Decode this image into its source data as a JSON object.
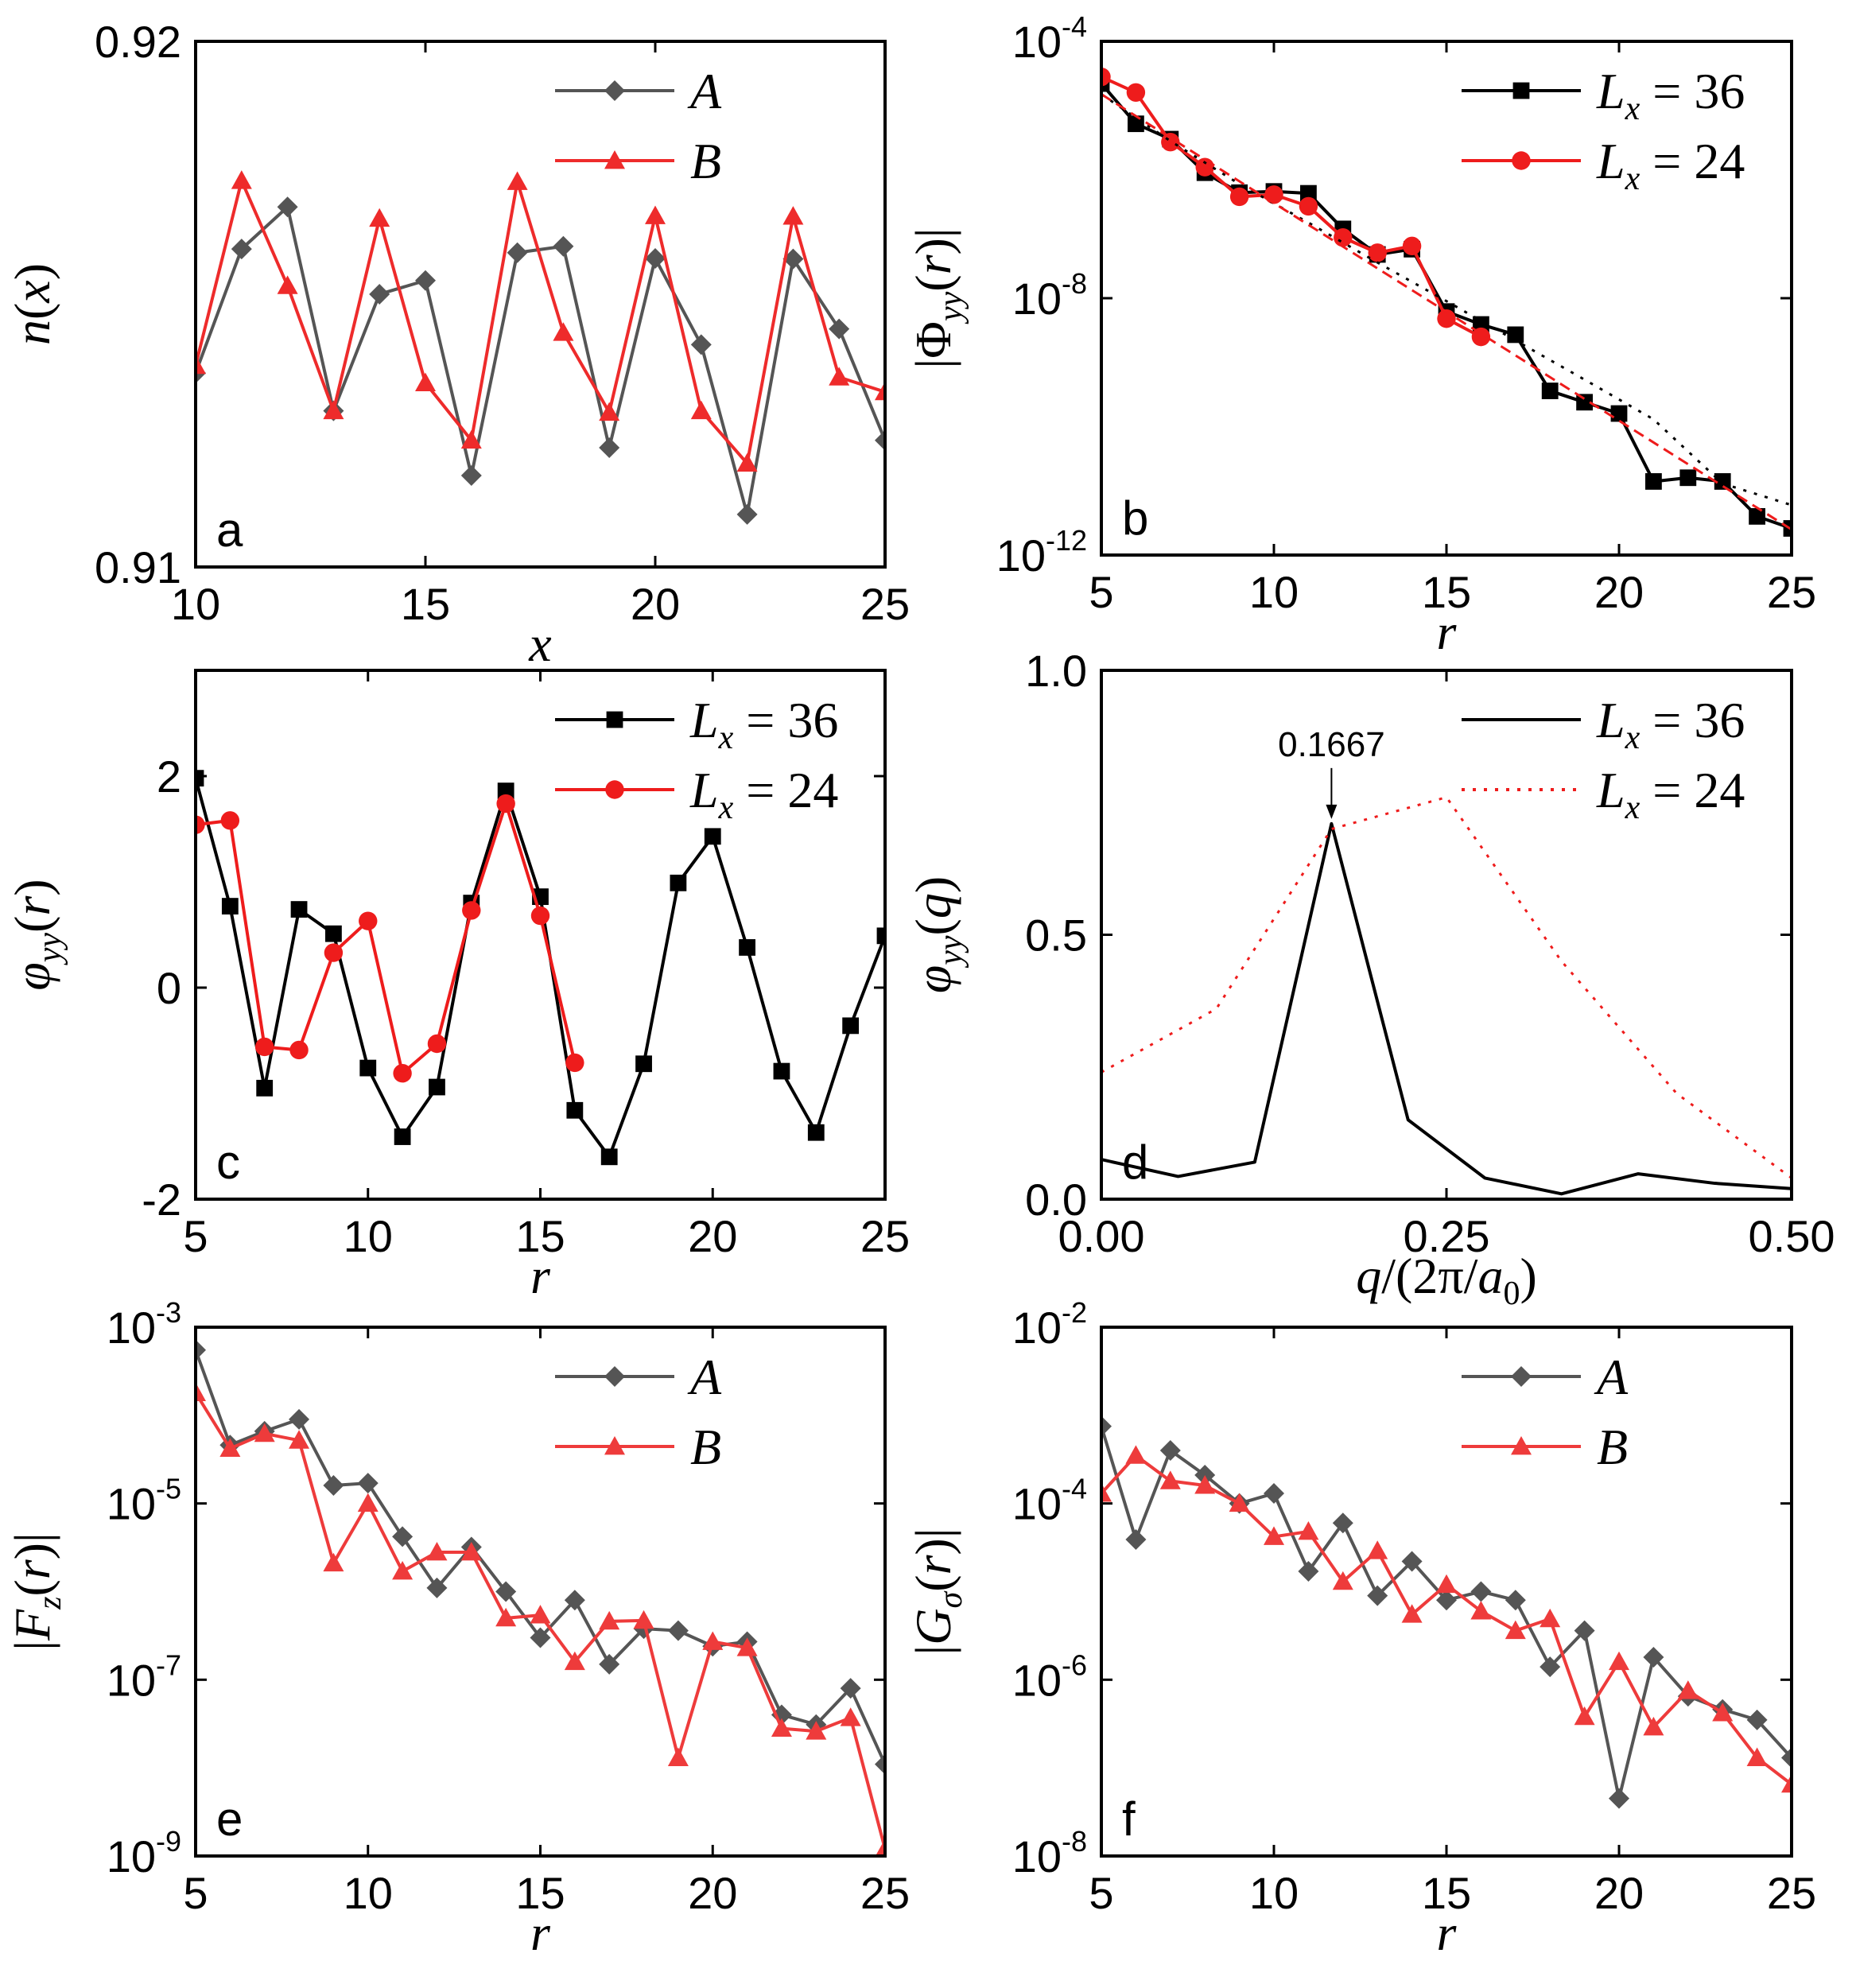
{
  "chart_data": [
    {
      "id": "a",
      "type": "line",
      "panel_label": "a",
      "xlabel": "x",
      "ylabel": "n(x)",
      "xlim": [
        10,
        25
      ],
      "ylim": [
        0.91,
        0.92
      ],
      "yscale": "linear",
      "xticks": [
        10,
        15,
        20,
        25
      ],
      "xtick_labels": [
        "10",
        "15",
        "20",
        "25"
      ],
      "yticks": [
        0.91,
        0.92
      ],
      "ytick_labels": [
        "0.91",
        "0.92"
      ],
      "legend_position": "top-right",
      "series": [
        {
          "name": "A",
          "color": "#555555",
          "marker": "diamond",
          "x": [
            10,
            11,
            12,
            13,
            14,
            15,
            16,
            17,
            18,
            19,
            20,
            21,
            22,
            23,
            24,
            25
          ],
          "y": [
            0.91369,
            0.91605,
            0.91685,
            0.91297,
            0.91519,
            0.91545,
            0.91174,
            0.91598,
            0.9161,
            0.91227,
            0.91587,
            0.91423,
            0.911,
            0.91586,
            0.91453,
            0.91241
          ]
        },
        {
          "name": "B",
          "color": "#ee2b2b",
          "marker": "triangle",
          "x": [
            10,
            11,
            12,
            13,
            14,
            15,
            16,
            17,
            18,
            19,
            20,
            21,
            22,
            23,
            24,
            25
          ],
          "y": [
            0.91383,
            0.91735,
            0.91535,
            0.91297,
            0.91663,
            0.9135,
            0.91241,
            0.91733,
            0.91446,
            0.91294,
            0.91668,
            0.91297,
            0.91197,
            0.91667,
            0.91361,
            0.91333
          ]
        }
      ]
    },
    {
      "id": "b",
      "type": "line",
      "panel_label": "b",
      "xlabel": "r",
      "ylabel": "|Φyy(r)|",
      "xlim": [
        5,
        25
      ],
      "ylim": [
        1e-12,
        0.0001
      ],
      "yscale": "log",
      "xticks": [
        5,
        10,
        15,
        20,
        25
      ],
      "xtick_labels": [
        "5",
        "10",
        "15",
        "20",
        "25"
      ],
      "yticks": [
        1e-12,
        1e-08,
        0.0001
      ],
      "ytick_labels": [
        [
          "10",
          "-12"
        ],
        [
          "10",
          "-8"
        ],
        [
          "10",
          "-4"
        ]
      ],
      "legend_position": "top-right",
      "series": [
        {
          "name": "Lx = 36",
          "legend_lhs": "L",
          "legend_sub": "x",
          "legend_rhs": " = 36",
          "color": "#000000",
          "marker": "square",
          "x": [
            5,
            6,
            7,
            8,
            9,
            10,
            11,
            12,
            13,
            14,
            15,
            16,
            17,
            18,
            19,
            20,
            21,
            22,
            23,
            24,
            25
          ],
          "y": [
            2.2e-05,
            5.2e-06,
            3e-06,
            9e-07,
            4.4e-07,
            4.6e-07,
            4.3e-07,
            1.2e-07,
            4.8e-08,
            5.8e-08,
            6.2e-09,
            3.9e-09,
            2.7e-09,
            3.6e-10,
            2.4e-10,
            1.6e-10,
            1.4e-11,
            1.6e-11,
            1.4e-11,
            4e-12,
            2.6e-12
          ]
        },
        {
          "name": "Lx = 24",
          "legend_lhs": "L",
          "legend_sub": "x",
          "legend_rhs": " = 24",
          "color": "#ee1c1c",
          "marker": "circle",
          "x": [
            5,
            6,
            7,
            8,
            9,
            10,
            11,
            12,
            13,
            14,
            15,
            16
          ],
          "y": [
            2.8e-05,
            1.6e-05,
            2.7e-06,
            1.1e-06,
            3.8e-07,
            4.1e-07,
            2.7e-07,
            8.8e-08,
            5.1e-08,
            6.5e-08,
            4.8e-09,
            2.5e-09
          ]
        },
        {
          "name": "fit 36",
          "color": "#000000",
          "style": "dotted",
          "in_legend": false,
          "x": [
            5,
            7,
            9,
            11,
            13,
            15,
            17,
            19,
            21,
            23,
            25
          ],
          "y": [
            1.5e-05,
            2.8e-06,
            6e-07,
            1.5e-07,
            3.6e-08,
            9e-09,
            2.2e-09,
            5.4e-10,
            1.3e-10,
            1.3e-11,
            6e-12
          ]
        },
        {
          "name": "fit 24",
          "color": "#ee1c1c",
          "style": "dashed",
          "in_legend": false,
          "x": [
            5,
            25
          ],
          "y": [
            1.5e-05,
            2.5e-12
          ]
        }
      ]
    },
    {
      "id": "c",
      "type": "line",
      "panel_label": "c",
      "xlabel": "r",
      "ylabel": "φyy(r)",
      "xlim": [
        5,
        25
      ],
      "ylim": [
        -2,
        3
      ],
      "yscale": "linear",
      "xticks": [
        5,
        10,
        15,
        20,
        25
      ],
      "xtick_labels": [
        "5",
        "10",
        "15",
        "20",
        "25"
      ],
      "yticks": [
        -2,
        0,
        2
      ],
      "ytick_labels": [
        "-2",
        "0",
        "2"
      ],
      "legend_position": "top-right",
      "series": [
        {
          "name": "Lx = 36",
          "legend_lhs": "L",
          "legend_sub": "x",
          "legend_rhs": " = 36",
          "color": "#000000",
          "marker": "square",
          "x": [
            5,
            6,
            7,
            8,
            9,
            10,
            11,
            12,
            13,
            14,
            15,
            16,
            17,
            18,
            19,
            20,
            21,
            22,
            23,
            24,
            25
          ],
          "y": [
            1.98,
            0.77,
            -0.95,
            0.74,
            0.51,
            -0.76,
            -1.41,
            -0.94,
            0.8,
            1.86,
            0.86,
            -1.16,
            -1.6,
            -0.72,
            0.99,
            1.43,
            0.38,
            -0.79,
            -1.37,
            -0.36,
            0.49
          ]
        },
        {
          "name": "Lx = 24",
          "legend_lhs": "L",
          "legend_sub": "x",
          "legend_rhs": " = 24",
          "color": "#ee1c1c",
          "marker": "circle",
          "x": [
            5,
            6,
            7,
            8,
            9,
            10,
            11,
            12,
            13,
            14,
            15,
            16
          ],
          "y": [
            1.54,
            1.58,
            -0.56,
            -0.59,
            0.33,
            0.63,
            -0.81,
            -0.53,
            0.73,
            1.74,
            0.68,
            -0.71
          ]
        }
      ]
    },
    {
      "id": "d",
      "type": "line",
      "panel_label": "d",
      "xlabel": "q/(2π/a0)",
      "ylabel": "φyy(q)",
      "xlim": [
        0,
        0.5
      ],
      "ylim": [
        0,
        1.0
      ],
      "yscale": "linear",
      "xticks": [
        0,
        0.25,
        0.5
      ],
      "xtick_labels": [
        "0.00",
        "0.25",
        "0.50"
      ],
      "yticks": [
        0,
        0.5,
        1.0
      ],
      "ytick_labels": [
        "0.0",
        "0.5",
        "1.0"
      ],
      "legend_position": "top-right",
      "annotation": {
        "text": "0.1667",
        "x": 0.1667,
        "y": 0.71
      },
      "series": [
        {
          "name": "Lx = 36",
          "legend_lhs": "L",
          "legend_sub": "x",
          "legend_rhs": " = 36",
          "color": "#000000",
          "style": "solid",
          "x": [
            0,
            0.0556,
            0.1111,
            0.1667,
            0.2222,
            0.2778,
            0.3333,
            0.3889,
            0.4444,
            0.5
          ],
          "y": [
            0.075,
            0.043,
            0.07,
            0.71,
            0.15,
            0.04,
            0.01,
            0.048,
            0.03,
            0.02
          ]
        },
        {
          "name": "Lx = 24",
          "legend_lhs": "L",
          "legend_sub": "x",
          "legend_rhs": " = 24",
          "color": "#ee1c1c",
          "style": "dotted",
          "x": [
            0,
            0.0833,
            0.1667,
            0.25,
            0.3333,
            0.4167,
            0.5
          ],
          "y": [
            0.24,
            0.36,
            0.7,
            0.76,
            0.45,
            0.2,
            0.04
          ]
        }
      ]
    },
    {
      "id": "e",
      "type": "line",
      "panel_label": "e",
      "xlabel": "r",
      "ylabel": "|Fz(r)|",
      "xlim": [
        5,
        25
      ],
      "ylim": [
        1e-09,
        0.001
      ],
      "yscale": "log",
      "xticks": [
        5,
        10,
        15,
        20,
        25
      ],
      "xtick_labels": [
        "5",
        "10",
        "15",
        "20",
        "25"
      ],
      "yticks": [
        1e-09,
        1e-07,
        1e-05,
        0.001
      ],
      "ytick_labels": [
        [
          "10",
          "-9"
        ],
        [
          "10",
          "-7"
        ],
        [
          "10",
          "-5"
        ],
        [
          "10",
          "-3"
        ]
      ],
      "legend_position": "top-right",
      "series": [
        {
          "name": "A",
          "color": "#555555",
          "marker": "diamond",
          "x": [
            5,
            6,
            7,
            8,
            9,
            10,
            11,
            12,
            13,
            14,
            15,
            16,
            17,
            18,
            19,
            20,
            21,
            22,
            23,
            24,
            25
          ],
          "y": [
            0.00055,
            4.6e-05,
            6.6e-05,
            9e-05,
            1.6e-05,
            1.7e-05,
            4.2e-06,
            1.1e-06,
            3.2e-06,
            1e-06,
            3e-07,
            8e-07,
            1.5e-07,
            3.8e-07,
            3.6e-07,
            2.4e-07,
            2.7e-07,
            4e-08,
            3.1e-08,
            8e-08,
            1.1e-08
          ]
        },
        {
          "name": "B",
          "color": "#ee3b3b",
          "marker": "triangle",
          "x": [
            5,
            6,
            7,
            8,
            9,
            10,
            11,
            12,
            13,
            14,
            15,
            16,
            17,
            18,
            19,
            20,
            21,
            22,
            23,
            24,
            25
          ],
          "y": [
            0.00018,
            4.2e-05,
            6.2e-05,
            5.2e-05,
            2.1e-06,
            1e-05,
            1.7e-06,
            2.8e-06,
            2.8e-06,
            5e-07,
            5.4e-07,
            1.6e-07,
            4.6e-07,
            4.7e-07,
            1.3e-08,
            2.7e-07,
            2.3e-07,
            2.8e-08,
            2.6e-08,
            3.7e-08,
            1.2e-09
          ]
        }
      ]
    },
    {
      "id": "f",
      "type": "line",
      "panel_label": "f",
      "xlabel": "r",
      "ylabel": "|Gσ(r)|",
      "xlim": [
        5,
        25
      ],
      "ylim": [
        1e-08,
        0.01
      ],
      "yscale": "log",
      "xticks": [
        5,
        10,
        15,
        20,
        25
      ],
      "xtick_labels": [
        "5",
        "10",
        "15",
        "20",
        "25"
      ],
      "yticks": [
        1e-08,
        1e-06,
        0.0001,
        0.01
      ],
      "ytick_labels": [
        [
          "10",
          "-8"
        ],
        [
          "10",
          "-6"
        ],
        [
          "10",
          "-4"
        ],
        [
          "10",
          "-2"
        ]
      ],
      "legend_position": "top-right",
      "series": [
        {
          "name": "A",
          "color": "#555555",
          "marker": "diamond",
          "x": [
            5,
            6,
            7,
            8,
            9,
            10,
            11,
            12,
            13,
            14,
            15,
            16,
            17,
            18,
            19,
            20,
            21,
            22,
            23,
            24,
            25
          ],
          "y": [
            0.00075,
            3.9e-05,
            0.0004,
            0.00021,
            0.0001,
            0.00013,
            1.7e-05,
            6e-05,
            9e-06,
            2.2e-05,
            8e-06,
            1e-05,
            8e-06,
            1.4e-06,
            3.6e-06,
            4.5e-08,
            1.8e-06,
            6.5e-07,
            4.6e-07,
            3.5e-07,
            1.3e-07
          ]
        },
        {
          "name": "B",
          "color": "#ee3b3b",
          "marker": "triangle",
          "x": [
            5,
            6,
            7,
            8,
            9,
            10,
            11,
            12,
            13,
            14,
            15,
            16,
            17,
            18,
            19,
            20,
            21,
            22,
            23,
            24,
            25
          ],
          "y": [
            0.00013,
            0.00035,
            0.00018,
            0.00016,
            0.0001,
            4.2e-05,
            4.8e-05,
            1.3e-05,
            2.9e-05,
            5.5e-06,
            1.2e-05,
            6e-06,
            3.6e-06,
            4.9e-06,
            3.8e-07,
            1.6e-06,
            2.9e-07,
            7.5e-07,
            4.2e-07,
            1.3e-07,
            6.5e-08
          ]
        }
      ]
    }
  ]
}
